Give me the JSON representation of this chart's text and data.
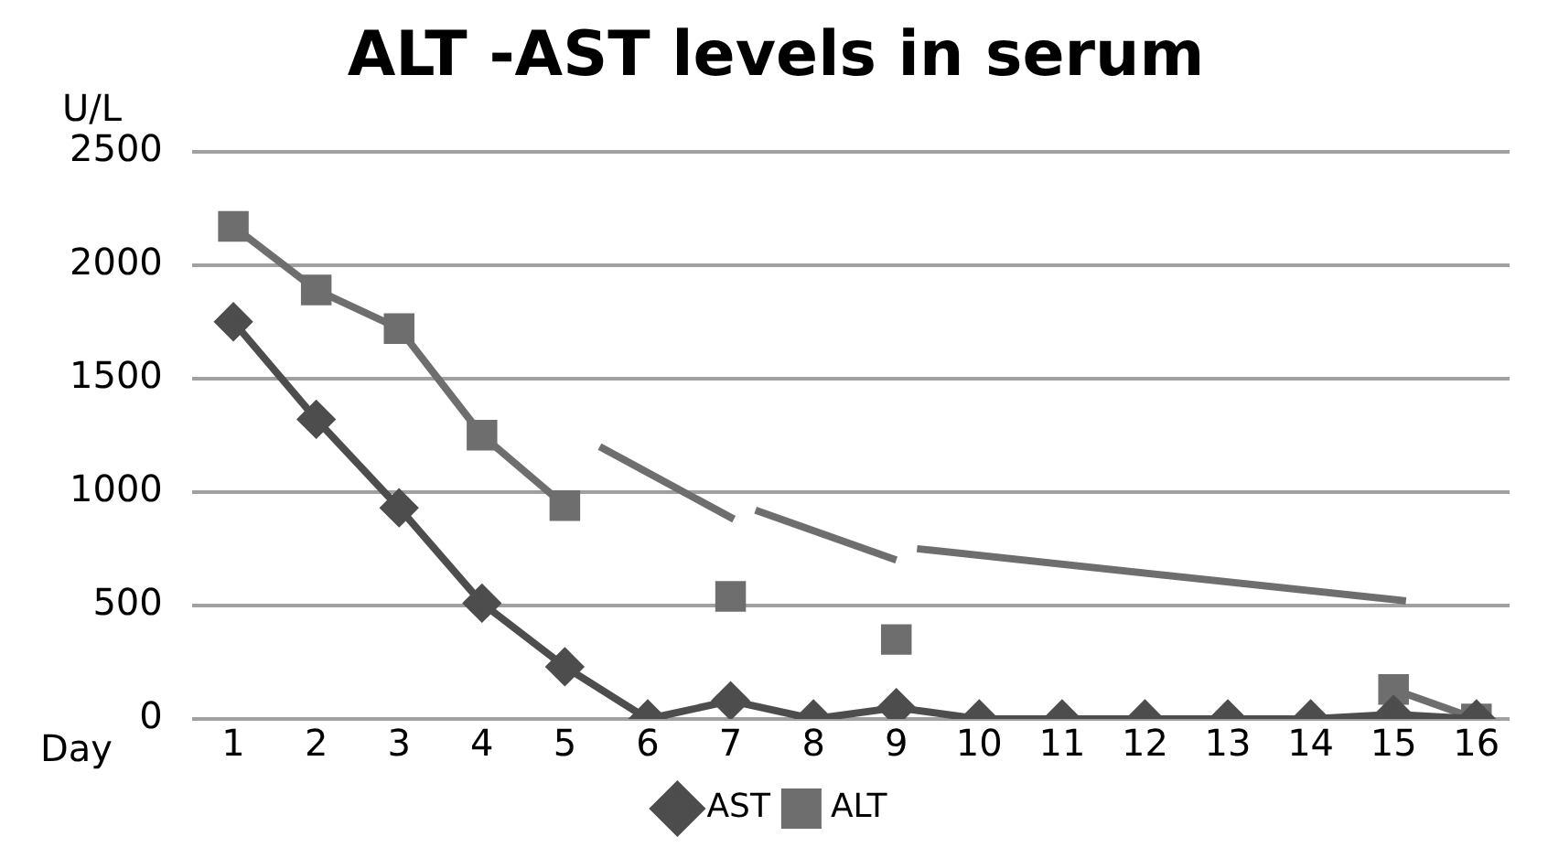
{
  "chart_data": {
    "type": "line",
    "title": "ALT -AST levels in serum",
    "xlabel": "Day",
    "ylabel": "U/L",
    "x": [
      1,
      2,
      3,
      4,
      5,
      6,
      7,
      8,
      9,
      10,
      11,
      12,
      13,
      14,
      15,
      16
    ],
    "series": [
      {
        "name": "AST",
        "color": "#4d4d4d",
        "marker": "diamond",
        "values": [
          1750,
          1320,
          930,
          510,
          230,
          0,
          80,
          0,
          50,
          0,
          0,
          0,
          0,
          0,
          20,
          0
        ]
      },
      {
        "name": "ALT",
        "color": "#6e6e6e",
        "marker": "square",
        "values": [
          2170,
          1890,
          1720,
          1250,
          940,
          null,
          540,
          null,
          350,
          null,
          null,
          null,
          null,
          null,
          130,
          0
        ]
      },
      {
        "color": "#6e6e6e",
        "marker": "none",
        "x": [
          5.42,
          7.04,
          7.2,
          7.3,
          9.0,
          9.2,
          9.25,
          15.15
        ],
        "values": [
          1200,
          880,
          null,
          920,
          700,
          null,
          750,
          520
        ]
      }
    ],
    "xlim": [
      0.5,
      16.4
    ],
    "xticks": [
      1,
      2,
      3,
      4,
      5,
      6,
      7,
      8,
      9,
      10,
      11,
      12,
      13,
      14,
      15,
      16
    ],
    "ylim": [
      0,
      2500
    ],
    "yticks": [
      0,
      500,
      1000,
      1500,
      2000,
      2500
    ],
    "grid": "y",
    "legend": "bottom"
  }
}
